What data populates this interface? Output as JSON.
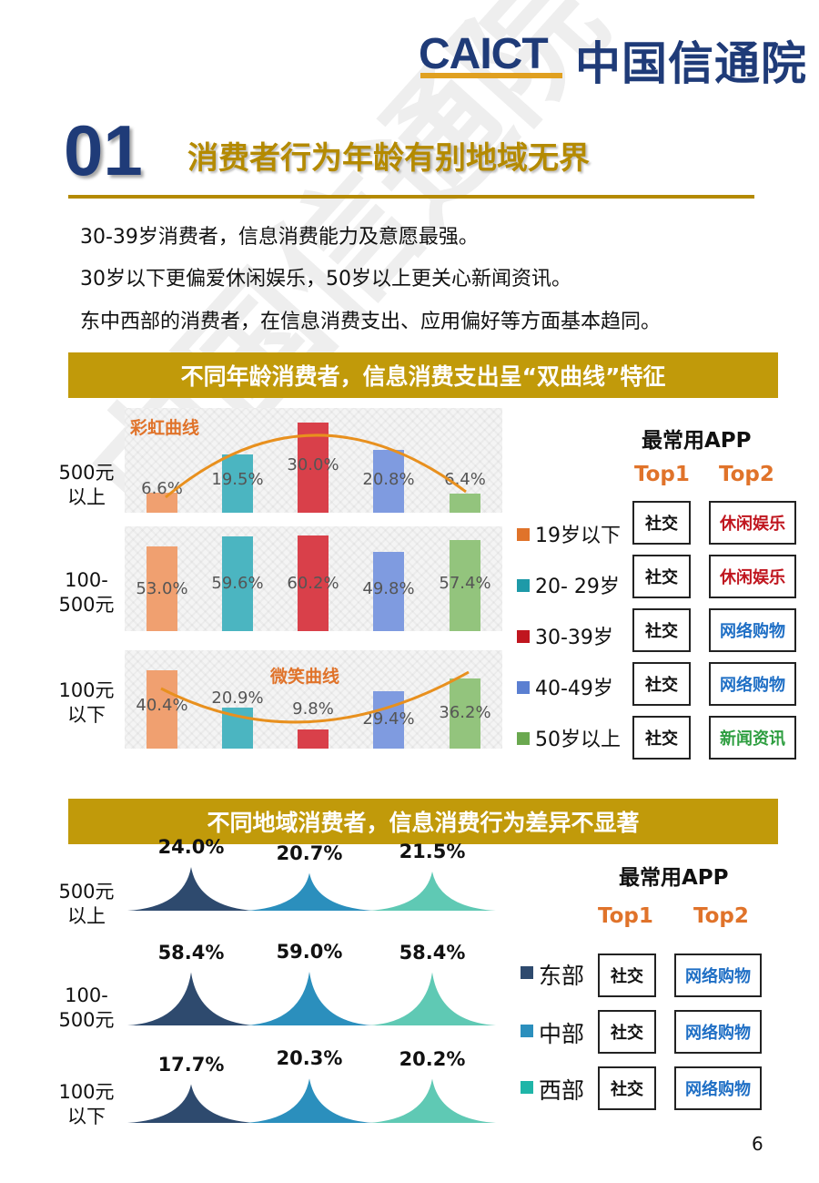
{
  "header": {
    "logo_en": "CAICT",
    "logo_cn": "中国信通院"
  },
  "section": {
    "number": "01",
    "title": "消费者行为年龄有别地域无界"
  },
  "intro": [
    "30-39岁消费者，信息消费能力及意愿最强。",
    "30岁以下更偏爱休闲娱乐，50岁以上更关心新闻资讯。",
    "东中西部的消费者，在信息消费支出、应用偏好等方面基本趋同。"
  ],
  "age_section": {
    "banner": "不同年龄消费者，信息消费支出呈“双曲线”特征",
    "rainbow_label": "彩虹曲线",
    "smile_label": "微笑曲线",
    "row_labels": [
      "500元以上",
      "100-500元",
      "100元以下"
    ],
    "legend": [
      {
        "label": "19岁以下",
        "color": "#e0732a"
      },
      {
        "label": "20- 29岁",
        "color": "#1e9aa8"
      },
      {
        "label": "30-39岁",
        "color": "#c0161f"
      },
      {
        "label": "40-49岁",
        "color": "#5b7fd1"
      },
      {
        "label": "50岁以上",
        "color": "#6aa84f"
      }
    ],
    "apps": {
      "title": "最常用APP",
      "top1_label": "Top1",
      "top2_label": "Top2",
      "rows": [
        {
          "top1": "社交",
          "top2": "休闲娱乐",
          "top2_color": "#c0161f"
        },
        {
          "top1": "社交",
          "top2": "休闲娱乐",
          "top2_color": "#c0161f"
        },
        {
          "top1": "社交",
          "top2": "网络购物",
          "top2_color": "#1f6fc5"
        },
        {
          "top1": "社交",
          "top2": "网络购物",
          "top2_color": "#1f6fc5"
        },
        {
          "top1": "社交",
          "top2": "新闻资讯",
          "top2_color": "#2e9e40"
        }
      ]
    }
  },
  "chart_data": [
    {
      "type": "bar",
      "title": "",
      "categories": [
        "19岁以下",
        "20- 29岁",
        "30-39岁",
        "40-49岁",
        "50岁以上"
      ],
      "series": [
        {
          "name": "500元以上",
          "values": [
            6.6,
            19.5,
            30.0,
            20.8,
            6.4
          ],
          "labels": [
            "6.6%",
            "19.5%",
            "30.0%",
            "20.8%",
            "6.4%"
          ]
        },
        {
          "name": "100-500元",
          "values": [
            53.0,
            59.6,
            60.2,
            49.8,
            57.4
          ],
          "labels": [
            "53.0%",
            "59.6%",
            "60.2%",
            "49.8%",
            "57.4%"
          ]
        },
        {
          "name": "100元以下",
          "values": [
            40.4,
            20.9,
            9.8,
            29.4,
            36.2
          ],
          "labels": [
            "40.4%",
            "20.9%",
            "9.8%",
            "29.4%",
            "36.2%"
          ]
        }
      ],
      "colors": [
        "#f0a070",
        "#4bb5c1",
        "#d9404a",
        "#7f9be0",
        "#93c47d"
      ]
    },
    {
      "type": "area",
      "title": "",
      "categories": [
        "东部",
        "中部",
        "西部"
      ],
      "series": [
        {
          "name": "500元以上",
          "values": [
            24.0,
            20.7,
            21.5
          ],
          "labels": [
            "24.0%",
            "20.7%",
            "21.5%"
          ]
        },
        {
          "name": "100-500元",
          "values": [
            58.4,
            59.0,
            58.4
          ],
          "labels": [
            "58.4%",
            "59.0%",
            "58.4%"
          ]
        },
        {
          "name": "100元以下",
          "values": [
            17.7,
            20.3,
            20.2
          ],
          "labels": [
            "17.7%",
            "20.3%",
            "20.2%"
          ]
        }
      ],
      "colors": [
        "#2e4a6e",
        "#2b8fbd",
        "#5fc9b4"
      ]
    }
  ],
  "region_section": {
    "banner": "不同地域消费者，信息消费行为差异不显著",
    "row_labels": [
      "500元以上",
      "100-500元",
      "100元以下"
    ],
    "legend": [
      {
        "label": "东部",
        "color": "#2e4a6e"
      },
      {
        "label": "中部",
        "color": "#2b8fbd"
      },
      {
        "label": "西部",
        "color": "#1fb5a8"
      }
    ],
    "apps": {
      "title": "最常用APP",
      "top1_label": "Top1",
      "top2_label": "Top2",
      "rows": [
        {
          "top1": "社交",
          "top2": "网络购物"
        },
        {
          "top1": "社交",
          "top2": "网络购物"
        },
        {
          "top1": "社交",
          "top2": "网络购物"
        }
      ]
    }
  },
  "page_number": "6"
}
